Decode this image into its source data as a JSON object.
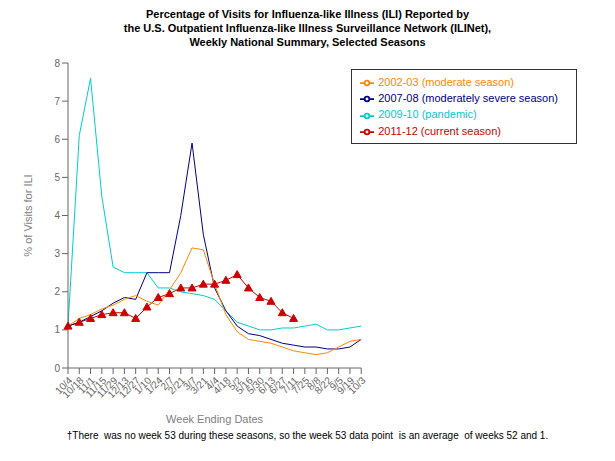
{
  "chart_data": {
    "type": "line",
    "title": "Percentage of Visits for Influenza-like Illness (ILI) Reported by\nthe U.S. Outpatient Influenza-like Illness Surveillance Network (ILINet),\nWeekly National Summary, Selected Seasons",
    "x_label": "Week Ending Dates",
    "y_label": "% of Visits for ILI",
    "footnote": "†There  was no week 53 during these seasons, so the week 53 data point  is an average  of weeks 52 and 1.",
    "categories": [
      "10/4",
      "10/18",
      "11/1",
      "11/15",
      "11/29",
      "12/13",
      "12/27",
      "1/10",
      "1/24",
      "2/7",
      "2/21",
      "3/7",
      "3/21",
      "4/4",
      "4/18",
      "5/2",
      "5/16",
      "5/30",
      "6/13",
      "6/27",
      "7/11",
      "7/25",
      "8/8",
      "8/22",
      "9/5",
      "9/19",
      "10/3"
    ],
    "series": [
      {
        "name": "2011-12 (current season)",
        "color": "#cc0000",
        "marker": "triangle",
        "values": [
          1.1,
          1.2,
          1.3,
          1.4,
          1.45,
          1.45,
          1.3,
          1.6,
          1.85,
          1.95,
          2.1,
          2.1,
          2.2,
          2.2,
          2.3,
          2.45,
          2.1,
          1.85,
          1.75,
          1.45,
          1.3,
          null,
          null,
          null,
          null,
          null,
          null
        ]
      },
      {
        "name": "2009-10 (pandemic)",
        "color": "#00cccc",
        "values": [
          1.1,
          6.1,
          7.6,
          4.5,
          2.65,
          2.5,
          2.5,
          2.5,
          2.1,
          2.1,
          2.0,
          1.95,
          1.9,
          1.8,
          1.5,
          1.2,
          1.1,
          1.0,
          1.0,
          1.05,
          1.05,
          1.1,
          1.15,
          1.0,
          1.0,
          1.05,
          1.1
        ]
      },
      {
        "name": "2007-08 (moderately severe season)",
        "color": "#000080",
        "values": [
          1.1,
          1.2,
          1.35,
          1.5,
          1.7,
          1.85,
          1.8,
          2.5,
          2.5,
          2.5,
          4.0,
          5.9,
          3.5,
          2.1,
          1.5,
          1.1,
          0.9,
          0.85,
          0.75,
          0.65,
          0.6,
          0.55,
          0.55,
          0.5,
          0.5,
          0.55,
          0.75
        ]
      },
      {
        "name": "2002-03 (moderate season)",
        "color": "#ff8800",
        "values": [
          1.1,
          1.3,
          1.4,
          1.55,
          1.65,
          1.8,
          1.9,
          1.75,
          1.65,
          2.05,
          2.5,
          3.15,
          3.1,
          2.2,
          1.4,
          0.95,
          0.75,
          0.7,
          0.65,
          0.55,
          0.45,
          0.4,
          0.35,
          0.4,
          0.55,
          0.7,
          0.75
        ]
      }
    ],
    "ylim": [
      0,
      8
    ],
    "yticks": [
      0,
      1,
      2,
      3,
      4,
      5,
      6,
      7,
      8
    ],
    "grid": false,
    "legend": "upper right"
  }
}
